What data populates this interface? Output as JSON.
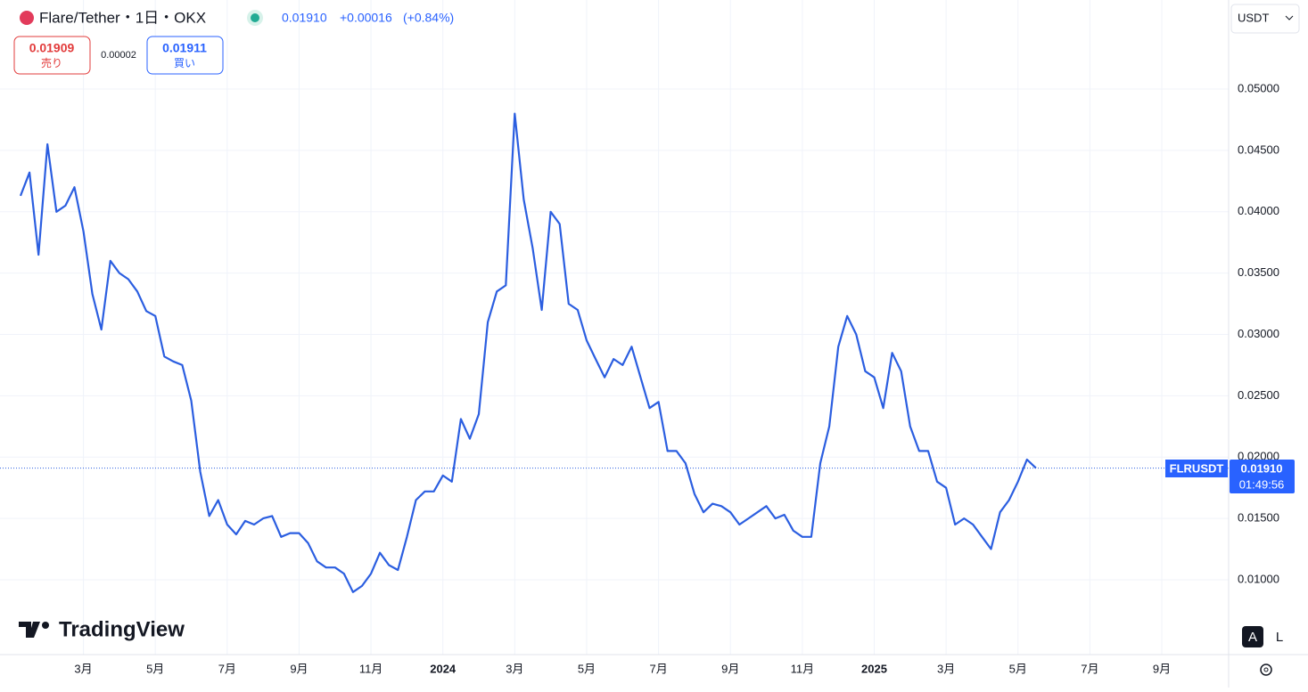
{
  "header": {
    "symbol": "Flare/Tether・1日・OKX",
    "price": "0.01910",
    "change": "+0.00016",
    "change_pct": "(+0.84%)",
    "sell_price": "0.01909",
    "sell_label": "売り",
    "spread": "0.00002",
    "buy_price": "0.01911",
    "buy_label": "買い",
    "currency": "USDT"
  },
  "price_tag": {
    "symbol": "FLRUSDT",
    "price": "0.01910",
    "countdown": "01:49:56"
  },
  "branding": "TradingView",
  "controls": {
    "auto": "A",
    "log": "L"
  },
  "chart_data": {
    "type": "line",
    "color": "#2b5ee0",
    "categories": [
      null,
      null,
      null,
      null,
      null,
      null,
      null,
      "3月",
      null,
      null,
      null,
      null,
      null,
      null,
      null,
      "5月",
      null,
      null,
      null,
      null,
      null,
      null,
      null,
      "7月",
      null,
      null,
      null,
      null,
      null,
      null,
      null,
      "9月",
      null,
      null,
      null,
      null,
      null,
      null,
      null,
      "11月",
      null,
      null,
      null,
      null,
      null,
      null,
      null,
      "2024",
      null,
      null,
      null,
      null,
      null,
      null,
      null,
      "3月",
      null,
      null,
      null,
      null,
      null,
      null,
      null,
      "5月",
      null,
      null,
      null,
      null,
      null,
      null,
      null,
      "7月",
      null,
      null,
      null,
      null,
      null,
      null,
      null,
      "9月",
      null,
      null,
      null,
      null,
      null,
      null,
      null,
      "11月",
      null,
      null,
      null,
      null,
      null,
      null,
      null,
      "2025",
      null,
      null,
      null,
      null,
      null,
      null,
      null,
      "3月",
      null,
      null,
      null,
      null,
      null,
      null,
      null,
      "5月",
      null,
      null,
      null,
      null,
      null,
      null,
      null,
      "7月",
      null,
      null,
      null,
      null,
      null,
      null,
      null,
      "9月"
    ],
    "values": [
      0.0413,
      0.0432,
      0.0365,
      0.0455,
      0.04,
      0.0405,
      0.042,
      0.0384,
      0.0333,
      0.0304,
      0.036,
      0.035,
      0.0345,
      0.0335,
      0.0319,
      0.0315,
      0.0282,
      0.0278,
      0.0275,
      0.0246,
      0.0188,
      0.0152,
      0.0165,
      0.0145,
      0.0137,
      0.0148,
      0.0145,
      0.015,
      0.0152,
      0.0135,
      0.0138,
      0.0138,
      0.013,
      0.0115,
      0.011,
      0.011,
      0.0105,
      0.009,
      0.0095,
      0.0105,
      0.0122,
      0.0112,
      0.0108,
      0.0135,
      0.0165,
      0.0172,
      0.0172,
      0.0185,
      0.018,
      0.0231,
      0.0215,
      0.0235,
      0.031,
      0.0335,
      0.034,
      0.048,
      0.041,
      0.037,
      0.032,
      0.04,
      0.039,
      0.0325,
      0.032,
      0.0295,
      0.028,
      0.0265,
      0.028,
      0.0275,
      0.029,
      0.0265,
      0.024,
      0.0245,
      0.0205,
      0.0205,
      0.0195,
      0.017,
      0.0155,
      0.0162,
      0.016,
      0.0155,
      0.0145,
      0.015,
      0.0155,
      0.016,
      0.015,
      0.0153,
      0.014,
      0.0135,
      0.0135,
      0.0195,
      0.0225,
      0.029,
      0.0315,
      0.03,
      0.027,
      0.0265,
      0.024,
      0.0285,
      0.027,
      0.0225,
      0.0205,
      0.0205,
      0.018,
      0.0175,
      0.0145,
      0.015,
      0.0145,
      0.0135,
      0.0125,
      0.0155,
      0.0165,
      0.018,
      0.0198,
      0.0191,
      null,
      null,
      null,
      null,
      null,
      null,
      null,
      null,
      null,
      null,
      null,
      null,
      null,
      null
    ],
    "ylim": [
      0.0039,
      0.0569
    ],
    "yticks": [
      {
        "value": 0.01,
        "label": "0.01000"
      },
      {
        "value": 0.015,
        "label": "0.01500"
      },
      {
        "value": 0.02,
        "label": "0.02000"
      },
      {
        "value": 0.025,
        "label": "0.02500"
      },
      {
        "value": 0.03,
        "label": "0.03000"
      },
      {
        "value": 0.035,
        "label": "0.03500"
      },
      {
        "value": 0.04,
        "label": "0.04000"
      },
      {
        "value": 0.045,
        "label": "0.04500"
      },
      {
        "value": 0.05,
        "label": "0.05000"
      }
    ],
    "price_line": 0.0191,
    "grid": true
  }
}
